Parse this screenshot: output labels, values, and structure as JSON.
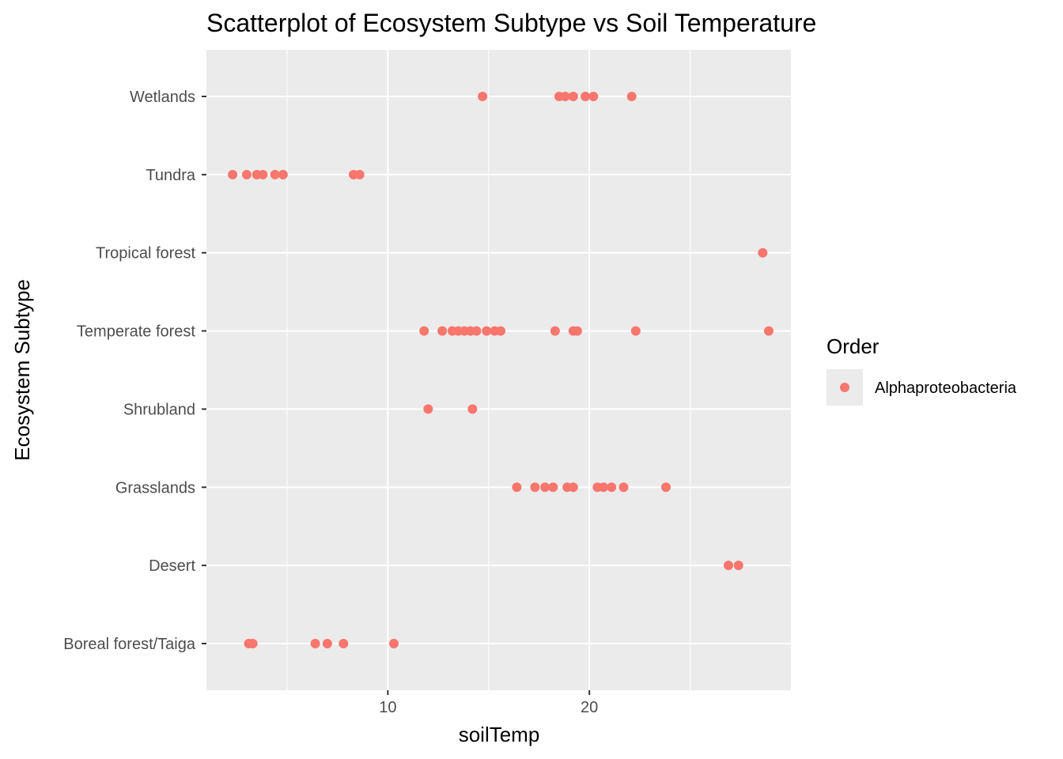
{
  "chart_data": {
    "type": "scatter",
    "title": "Scatterplot of Ecosystem Subtype vs Soil Temperature",
    "xlabel": "soilTemp",
    "ylabel": "Ecosystem Subtype",
    "xlim": [
      1.0,
      30.0
    ],
    "x_ticks": [
      10,
      20
    ],
    "x_minor_ticks": [
      5,
      15,
      25
    ],
    "y_categories": [
      "Boreal forest/Taiga",
      "Desert",
      "Grasslands",
      "Shrubland",
      "Temperate forest",
      "Tropical forest",
      "Tundra",
      "Wetlands"
    ],
    "grid": true,
    "legend": {
      "title": "Order",
      "position": "right",
      "entries": [
        "Alphaproteobacteria"
      ]
    },
    "colors": {
      "series": "#F8766D",
      "panel": "#EBEBEB",
      "grid": "#FFFFFF"
    },
    "series": [
      {
        "name": "Alphaproteobacteria",
        "points": [
          {
            "x": 14.7,
            "y": "Wetlands"
          },
          {
            "x": 18.5,
            "y": "Wetlands"
          },
          {
            "x": 18.8,
            "y": "Wetlands"
          },
          {
            "x": 19.2,
            "y": "Wetlands"
          },
          {
            "x": 19.8,
            "y": "Wetlands"
          },
          {
            "x": 20.2,
            "y": "Wetlands"
          },
          {
            "x": 22.1,
            "y": "Wetlands"
          },
          {
            "x": 2.3,
            "y": "Tundra"
          },
          {
            "x": 3.0,
            "y": "Tundra"
          },
          {
            "x": 3.5,
            "y": "Tundra"
          },
          {
            "x": 3.8,
            "y": "Tundra"
          },
          {
            "x": 4.4,
            "y": "Tundra"
          },
          {
            "x": 4.8,
            "y": "Tundra"
          },
          {
            "x": 8.3,
            "y": "Tundra"
          },
          {
            "x": 8.6,
            "y": "Tundra"
          },
          {
            "x": 28.6,
            "y": "Tropical forest"
          },
          {
            "x": 11.8,
            "y": "Temperate forest"
          },
          {
            "x": 12.7,
            "y": "Temperate forest"
          },
          {
            "x": 13.2,
            "y": "Temperate forest"
          },
          {
            "x": 13.5,
            "y": "Temperate forest"
          },
          {
            "x": 13.8,
            "y": "Temperate forest"
          },
          {
            "x": 14.1,
            "y": "Temperate forest"
          },
          {
            "x": 14.4,
            "y": "Temperate forest"
          },
          {
            "x": 14.9,
            "y": "Temperate forest"
          },
          {
            "x": 15.3,
            "y": "Temperate forest"
          },
          {
            "x": 15.6,
            "y": "Temperate forest"
          },
          {
            "x": 18.3,
            "y": "Temperate forest"
          },
          {
            "x": 19.2,
            "y": "Temperate forest"
          },
          {
            "x": 19.4,
            "y": "Temperate forest"
          },
          {
            "x": 22.3,
            "y": "Temperate forest"
          },
          {
            "x": 28.9,
            "y": "Temperate forest"
          },
          {
            "x": 12.0,
            "y": "Shrubland"
          },
          {
            "x": 14.2,
            "y": "Shrubland"
          },
          {
            "x": 16.4,
            "y": "Grasslands"
          },
          {
            "x": 17.3,
            "y": "Grasslands"
          },
          {
            "x": 17.8,
            "y": "Grasslands"
          },
          {
            "x": 18.2,
            "y": "Grasslands"
          },
          {
            "x": 18.9,
            "y": "Grasslands"
          },
          {
            "x": 19.2,
            "y": "Grasslands"
          },
          {
            "x": 20.4,
            "y": "Grasslands"
          },
          {
            "x": 20.7,
            "y": "Grasslands"
          },
          {
            "x": 21.1,
            "y": "Grasslands"
          },
          {
            "x": 21.7,
            "y": "Grasslands"
          },
          {
            "x": 23.8,
            "y": "Grasslands"
          },
          {
            "x": 26.9,
            "y": "Desert"
          },
          {
            "x": 27.4,
            "y": "Desert"
          },
          {
            "x": 3.1,
            "y": "Boreal forest/Taiga"
          },
          {
            "x": 3.3,
            "y": "Boreal forest/Taiga"
          },
          {
            "x": 6.4,
            "y": "Boreal forest/Taiga"
          },
          {
            "x": 7.0,
            "y": "Boreal forest/Taiga"
          },
          {
            "x": 7.8,
            "y": "Boreal forest/Taiga"
          },
          {
            "x": 10.3,
            "y": "Boreal forest/Taiga"
          }
        ]
      }
    ]
  }
}
